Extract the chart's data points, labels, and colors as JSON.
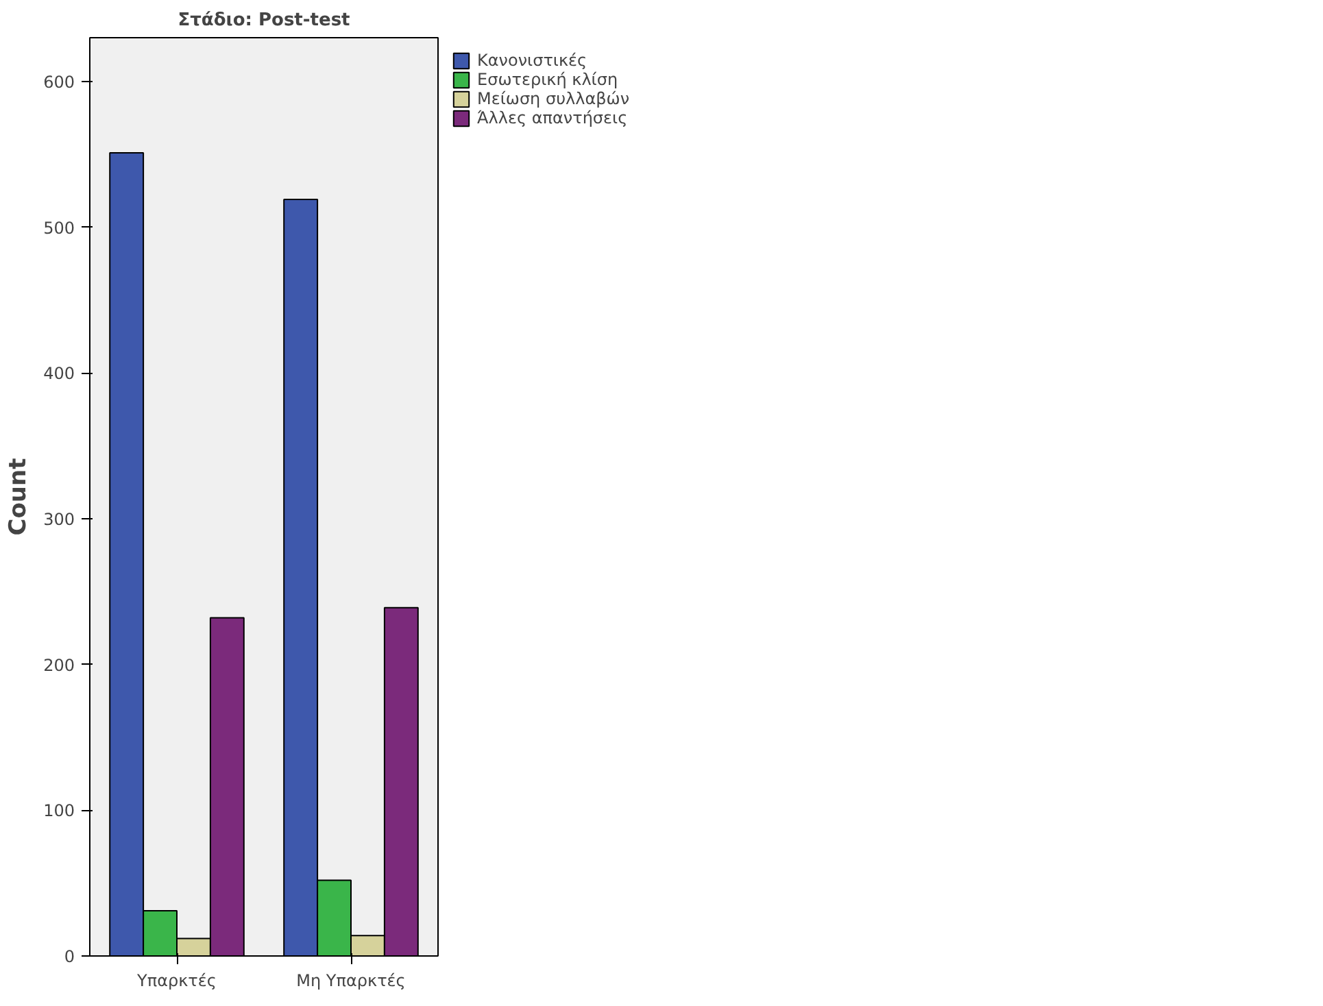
{
  "chart_data": {
    "type": "bar",
    "title": "Στάδιο: Post-test",
    "ylabel": "Count",
    "categories": [
      "Υπαρκτές",
      "Μη Υπαρκτές"
    ],
    "series": [
      {
        "name": "Κανονιστικές",
        "color": "#3e58ac",
        "values": [
          551,
          519
        ]
      },
      {
        "name": "Εσωτερική κλίση",
        "color": "#3ab54a",
        "values": [
          31,
          52
        ]
      },
      {
        "name": "Μείωση συλλαβών",
        "color": "#d6d29b",
        "values": [
          12,
          14
        ]
      },
      {
        "name": "Άλλες απαντήσεις",
        "color": "#7b2a7b",
        "values": [
          232,
          239
        ]
      }
    ],
    "ylim": [
      0,
      630
    ],
    "yticks": [
      0,
      100,
      200,
      300,
      400,
      500,
      600
    ],
    "grid": false,
    "legend": "right"
  }
}
